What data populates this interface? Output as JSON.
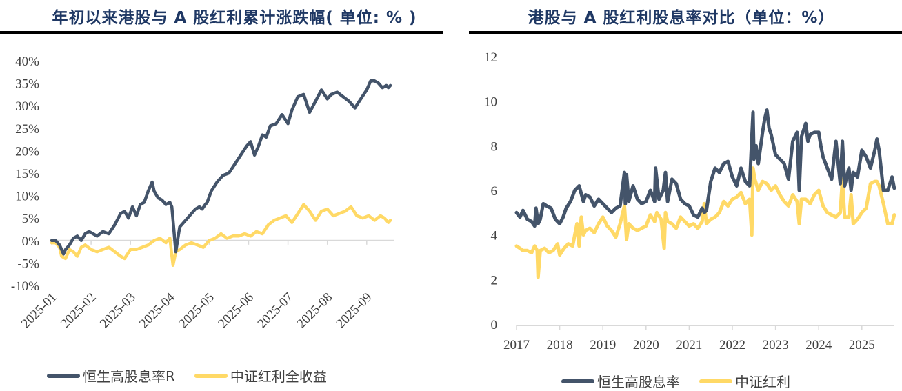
{
  "colors": {
    "series1": "#44546a",
    "series2": "#ffd966",
    "axis": "#d9d9d9",
    "title": "#1f3864"
  },
  "chart_data": [
    {
      "type": "line",
      "title": "年初以来港股与 A 股红利累计涨跌幅( 单位: % )",
      "xlabel": "",
      "ylabel": "",
      "ylim": [
        -10,
        40
      ],
      "y_ticks": [
        -10,
        -5,
        0,
        5,
        10,
        15,
        20,
        25,
        30,
        35,
        40
      ],
      "y_tick_labels": [
        "-10%",
        "-5%",
        "0%",
        "5%",
        "10%",
        "15%",
        "20%",
        "25%",
        "30%",
        "35%",
        "40%"
      ],
      "x_ticks": [
        "2025-01",
        "2025-02",
        "2025-03",
        "2025-04",
        "2025-05",
        "2025-06",
        "2025-07",
        "2025-08",
        "2025-09"
      ],
      "xlim_months": [
        0,
        8.7
      ],
      "legend_position": "bottom",
      "grid": false,
      "series": [
        {
          "name": "恒生高股息率R",
          "x": [
            0,
            0.1,
            0.2,
            0.3,
            0.35,
            0.45,
            0.55,
            0.65,
            0.75,
            0.85,
            0.95,
            1.05,
            1.15,
            1.3,
            1.45,
            1.6,
            1.75,
            1.85,
            1.95,
            2.05,
            2.15,
            2.25,
            2.35,
            2.45,
            2.55,
            2.6,
            2.7,
            2.8,
            2.9,
            3.0,
            3.05,
            3.15,
            3.25,
            3.35,
            3.45,
            3.55,
            3.65,
            3.75,
            3.82,
            3.9,
            3.95,
            4.05,
            4.2,
            4.35,
            4.5,
            4.65,
            4.8,
            4.95,
            5.05,
            5.15,
            5.25,
            5.35,
            5.45,
            5.55,
            5.7,
            5.85,
            6.0,
            6.1,
            6.25,
            6.4,
            6.55,
            6.7,
            6.85,
            7.0,
            7.1,
            7.25,
            7.4,
            7.55,
            7.7,
            7.85,
            8.0,
            8.1,
            8.2,
            8.3,
            8.4,
            8.5,
            8.55,
            8.6
          ],
          "values": [
            0,
            0,
            -1.0,
            -3.0,
            -2.0,
            -1.0,
            0.5,
            1.0,
            0,
            1.5,
            2.0,
            1.5,
            1.0,
            2.0,
            1.5,
            3.5,
            6.0,
            6.5,
            5.0,
            7.5,
            5.5,
            8.0,
            8.5,
            11.0,
            13.0,
            11.0,
            9.5,
            9.0,
            8.0,
            8.5,
            7.5,
            -2.5,
            3.0,
            4.0,
            5.0,
            6.0,
            7.0,
            7.5,
            7.0,
            8.0,
            8.5,
            11.0,
            13.0,
            14.5,
            15.0,
            17.0,
            19.0,
            21.0,
            22.0,
            19.0,
            21.0,
            23.5,
            23.0,
            25.5,
            26.0,
            28.0,
            26.0,
            29.0,
            32.0,
            32.5,
            28.5,
            31.0,
            33.5,
            31.5,
            32.5,
            33.0,
            32.0,
            31.0,
            29.5,
            31.5,
            33.5,
            35.5,
            35.5,
            35.0,
            34.0,
            34.5,
            34.0,
            34.5
          ]
        },
        {
          "name": "中证红利全收益",
          "x": [
            0,
            0.1,
            0.2,
            0.25,
            0.35,
            0.45,
            0.55,
            0.65,
            0.75,
            0.85,
            1.0,
            1.15,
            1.3,
            1.45,
            1.6,
            1.75,
            1.85,
            2.0,
            2.15,
            2.3,
            2.45,
            2.6,
            2.75,
            2.9,
            3.0,
            3.08,
            3.15,
            3.25,
            3.4,
            3.55,
            3.7,
            3.85,
            4.0,
            4.15,
            4.3,
            4.45,
            4.6,
            4.75,
            4.9,
            5.05,
            5.2,
            5.35,
            5.5,
            5.65,
            5.8,
            5.95,
            6.1,
            6.25,
            6.4,
            6.55,
            6.7,
            6.85,
            7.0,
            7.15,
            7.3,
            7.45,
            7.6,
            7.75,
            7.9,
            8.05,
            8.2,
            8.35,
            8.45,
            8.55,
            8.6
          ],
          "values": [
            -0.5,
            -0.5,
            -1.5,
            -3.5,
            -4.0,
            -2.0,
            -2.5,
            -3.5,
            -1.5,
            -1.0,
            -2.0,
            -2.5,
            -2.0,
            -1.5,
            -2.5,
            -3.5,
            -4.0,
            -2.0,
            -2.0,
            -1.5,
            -1.0,
            0.0,
            0.5,
            -0.5,
            0.5,
            -5.5,
            -2.5,
            -2.0,
            -1.0,
            -0.5,
            -1.0,
            -1.5,
            0.0,
            0.5,
            1.5,
            0.5,
            1.0,
            1.0,
            1.5,
            1.0,
            2.0,
            1.5,
            3.5,
            4.5,
            5.0,
            5.5,
            4.0,
            6.0,
            8.0,
            6.5,
            4.5,
            6.5,
            7.0,
            5.5,
            6.0,
            6.5,
            7.5,
            5.5,
            5.0,
            5.5,
            4.5,
            5.5,
            5.0,
            4.0,
            4.5
          ]
        }
      ]
    },
    {
      "type": "line",
      "title": "港股与 A 股红利股息率对比（单位：%）",
      "xlabel": "",
      "ylabel": "",
      "ylim": [
        0,
        12
      ],
      "y_ticks": [
        0,
        2,
        4,
        6,
        8,
        10,
        12
      ],
      "x_ticks": [
        "2017",
        "2018",
        "2019",
        "2020",
        "2021",
        "2022",
        "2023",
        "2024",
        "2025"
      ],
      "xlim": [
        2017,
        2025.75
      ],
      "legend_position": "bottom",
      "grid": false,
      "series": [
        {
          "name": "恒生高股息率",
          "x": [
            2017.0,
            2017.08,
            2017.15,
            2017.25,
            2017.35,
            2017.42,
            2017.45,
            2017.5,
            2017.55,
            2017.62,
            2017.7,
            2017.8,
            2017.9,
            2018.0,
            2018.08,
            2018.15,
            2018.25,
            2018.35,
            2018.45,
            2018.55,
            2018.6,
            2018.7,
            2018.8,
            2018.9,
            2019.0,
            2019.1,
            2019.2,
            2019.3,
            2019.4,
            2019.5,
            2019.52,
            2019.55,
            2019.6,
            2019.7,
            2019.8,
            2019.9,
            2020.0,
            2020.1,
            2020.2,
            2020.22,
            2020.3,
            2020.4,
            2020.45,
            2020.5,
            2020.6,
            2020.7,
            2020.8,
            2020.9,
            2021.0,
            2021.1,
            2021.2,
            2021.3,
            2021.35,
            2021.4,
            2021.5,
            2021.6,
            2021.7,
            2021.8,
            2021.9,
            2022.0,
            2022.1,
            2022.2,
            2022.3,
            2022.4,
            2022.48,
            2022.5,
            2022.55,
            2022.6,
            2022.7,
            2022.75,
            2022.8,
            2022.85,
            2022.9,
            2023.0,
            2023.1,
            2023.2,
            2023.3,
            2023.4,
            2023.5,
            2023.55,
            2023.6,
            2023.7,
            2023.75,
            2023.8,
            2023.9,
            2024.0,
            2024.05,
            2024.1,
            2024.2,
            2024.3,
            2024.4,
            2024.5,
            2024.55,
            2024.6,
            2024.7,
            2024.75,
            2024.8,
            2024.9,
            2025.0,
            2025.1,
            2025.2,
            2025.3,
            2025.35,
            2025.4,
            2025.5,
            2025.6,
            2025.7,
            2025.75
          ],
          "values": [
            5.0,
            4.8,
            5.1,
            4.7,
            4.6,
            4.4,
            5.2,
            4.5,
            4.7,
            5.4,
            5.3,
            5.2,
            4.7,
            4.5,
            4.8,
            5.2,
            5.5,
            6.0,
            6.2,
            5.5,
            5.8,
            5.7,
            5.3,
            5.6,
            5.4,
            5.2,
            5.0,
            5.2,
            5.3,
            6.8,
            5.4,
            6.7,
            5.5,
            6.2,
            5.6,
            5.4,
            5.5,
            6.0,
            5.5,
            7.0,
            5.6,
            6.0,
            6.8,
            5.5,
            6.5,
            6.3,
            5.6,
            5.4,
            5.3,
            4.9,
            4.8,
            5.2,
            5.0,
            5.1,
            6.4,
            7.0,
            6.8,
            7.2,
            7.3,
            6.6,
            6.2,
            7.0,
            6.4,
            6.2,
            9.5,
            7.4,
            8.0,
            7.2,
            8.6,
            9.2,
            9.6,
            8.8,
            8.5,
            7.6,
            7.4,
            7.2,
            6.5,
            8.2,
            8.6,
            6.0,
            8.4,
            9.0,
            8.2,
            8.5,
            8.6,
            8.6,
            8.0,
            7.5,
            7.0,
            6.5,
            8.2,
            6.3,
            8.2,
            6.2,
            7.0,
            6.0,
            6.8,
            6.6,
            7.8,
            7.5,
            7.0,
            7.8,
            8.3,
            7.8,
            6.0,
            6.0,
            6.6,
            6.1
          ]
        },
        {
          "name": "中证红利",
          "x": [
            2017.0,
            2017.08,
            2017.15,
            2017.25,
            2017.35,
            2017.42,
            2017.48,
            2017.5,
            2017.55,
            2017.65,
            2017.75,
            2017.85,
            2017.95,
            2018.0,
            2018.1,
            2018.2,
            2018.3,
            2018.4,
            2018.45,
            2018.5,
            2018.55,
            2018.6,
            2018.7,
            2018.8,
            2018.9,
            2019.0,
            2019.1,
            2019.2,
            2019.3,
            2019.4,
            2019.5,
            2019.55,
            2019.6,
            2019.7,
            2019.8,
            2019.9,
            2020.0,
            2020.1,
            2020.2,
            2020.25,
            2020.35,
            2020.42,
            2020.45,
            2020.5,
            2020.6,
            2020.7,
            2020.8,
            2020.9,
            2021.0,
            2021.1,
            2021.2,
            2021.3,
            2021.35,
            2021.4,
            2021.5,
            2021.6,
            2021.7,
            2021.8,
            2021.9,
            2022.0,
            2022.1,
            2022.2,
            2022.3,
            2022.4,
            2022.45,
            2022.48,
            2022.52,
            2022.6,
            2022.7,
            2022.8,
            2022.9,
            2023.0,
            2023.1,
            2023.2,
            2023.3,
            2023.4,
            2023.5,
            2023.55,
            2023.6,
            2023.7,
            2023.8,
            2023.9,
            2024.0,
            2024.1,
            2024.2,
            2024.3,
            2024.4,
            2024.5,
            2024.55,
            2024.6,
            2024.7,
            2024.75,
            2024.8,
            2024.9,
            2025.0,
            2025.1,
            2025.2,
            2025.3,
            2025.35,
            2025.4,
            2025.5,
            2025.6,
            2025.7,
            2025.75
          ],
          "values": [
            3.5,
            3.4,
            3.3,
            3.3,
            3.2,
            3.5,
            3.3,
            2.1,
            3.3,
            3.4,
            3.2,
            3.3,
            3.6,
            3.1,
            3.4,
            3.6,
            3.5,
            4.5,
            3.5,
            4.8,
            4.0,
            4.2,
            4.3,
            4.1,
            4.5,
            4.8,
            4.4,
            4.2,
            3.9,
            4.5,
            5.3,
            3.8,
            4.5,
            4.3,
            4.2,
            4.3,
            4.4,
            4.9,
            4.6,
            5.0,
            4.7,
            3.4,
            5.0,
            4.6,
            4.5,
            4.3,
            4.8,
            4.6,
            4.4,
            4.5,
            4.3,
            4.6,
            5.4,
            4.5,
            4.7,
            4.8,
            5.0,
            5.5,
            5.3,
            5.6,
            5.7,
            5.9,
            5.4,
            5.6,
            4.0,
            7.0,
            6.5,
            6.0,
            6.4,
            6.3,
            6.0,
            6.2,
            5.8,
            5.5,
            5.3,
            5.8,
            5.5,
            4.5,
            5.6,
            5.6,
            5.4,
            5.8,
            6.0,
            5.3,
            5.0,
            4.9,
            4.8,
            5.0,
            6.5,
            4.8,
            4.8,
            5.8,
            4.5,
            4.7,
            5.0,
            5.2,
            6.3,
            6.4,
            6.4,
            6.2,
            5.4,
            4.5,
            4.5,
            4.9
          ]
        }
      ]
    }
  ]
}
